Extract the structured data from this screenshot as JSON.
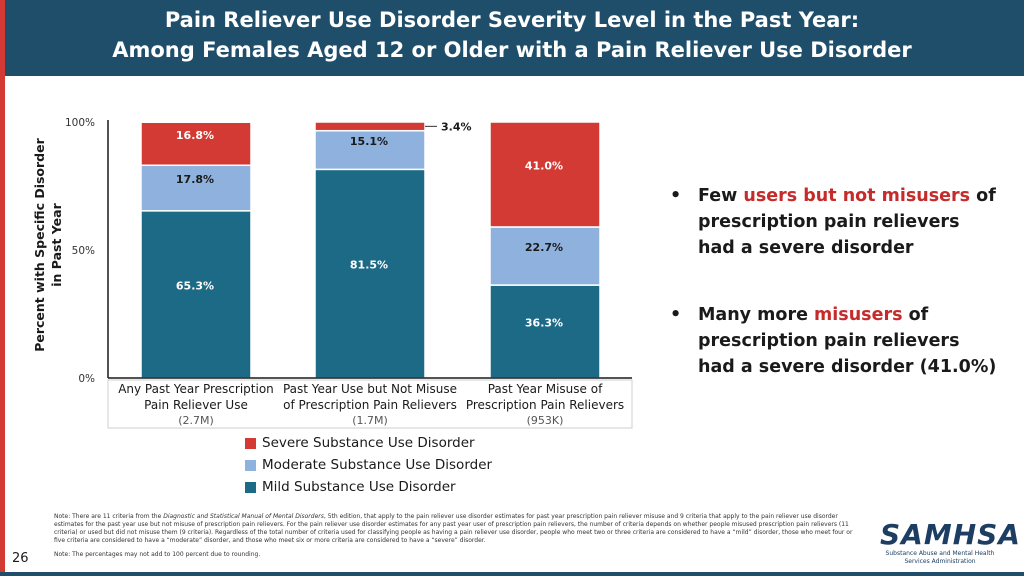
{
  "title_lines": [
    "Pain Reliever Use Disorder Severity Level in the Past Year:",
    "Among Females Aged 12 or Older with a Pain Reliever Use Disorder"
  ],
  "chart_data": {
    "type": "bar",
    "stacked": true,
    "percent": true,
    "ylim": [
      0,
      100
    ],
    "yticks": [
      "0%",
      "50%",
      "100%"
    ],
    "ylabel_lines": [
      "Percent with Specific Disorder",
      "in Past Year"
    ],
    "categories": [
      {
        "label_lines": [
          "Any Past Year Prescription",
          "Pain Reliever Use"
        ],
        "count": "(2.7M)"
      },
      {
        "label_lines": [
          "Past Year Use but Not Misuse",
          "of Prescription Pain Relievers"
        ],
        "count": "(1.7M)"
      },
      {
        "label_lines": [
          "Past Year Misuse of",
          "Prescription Pain Relievers"
        ],
        "count": "(953K)"
      }
    ],
    "series": [
      {
        "name": "Mild Substance Use Disorder",
        "color": "#1d6a86",
        "values": [
          65.3,
          81.5,
          36.3
        ],
        "labels": [
          "65.3%",
          "81.5%",
          "36.3%"
        ]
      },
      {
        "name": "Moderate Substance Use Disorder",
        "color": "#8fb1de",
        "values": [
          17.8,
          15.1,
          22.7
        ],
        "labels": [
          "17.8%",
          "15.1%",
          "22.7%"
        ]
      },
      {
        "name": "Severe Substance Use Disorder",
        "color": "#d23a33",
        "values": [
          16.8,
          3.4,
          41.0
        ],
        "labels": [
          "16.8%",
          "3.4%",
          "41.0%"
        ]
      }
    ],
    "legend_order": [
      2,
      1,
      0
    ]
  },
  "bullets": [
    {
      "pre": "Few ",
      "highlight": "users but not misusers",
      "post": " of prescription pain relievers had a severe disorder"
    },
    {
      "pre": "Many more ",
      "highlight": "misusers",
      "post": " of prescription pain relievers had a severe disorder (41.0%)"
    }
  ],
  "bullet_symbol": "•",
  "notes": {
    "note1_a": "Note: There are 11 criteria from the ",
    "note1_italic": "Diagnostic and Statistical Manual of Mental Disorders",
    "note1_b": ", 5th edition, that apply to the pain reliever use disorder estimates for past year prescription pain reliever misuse and 9 criteria that apply to the pain reliever use disorder estimates for the past year use but not misuse of prescription pain relievers. For the pain reliever use disorder estimates for any past year user of prescription pain relievers, the number of criteria depends on whether people misused prescription pain relievers (11 criteria) or used but did not misuse them (9 criteria). Regardless of the total number of criteria used for classifying people as having a pain reliever use disorder, people who meet two or three criteria are considered to have a “mild” disorder, those who meet four or five criteria are considered to have a “moderate” disorder, and those who meet six or more criteria are considered to have a “severe” disorder.",
    "note2": "Note: The percentages may not add to 100 percent due to rounding."
  },
  "page_number": "26",
  "logo": {
    "mark": "SAMHSA",
    "sub_lines": [
      "Substance Abuse and Mental Health",
      "Services Administration"
    ]
  },
  "colors": {
    "header": "#1f4e6b",
    "accent": "#d23a33"
  }
}
